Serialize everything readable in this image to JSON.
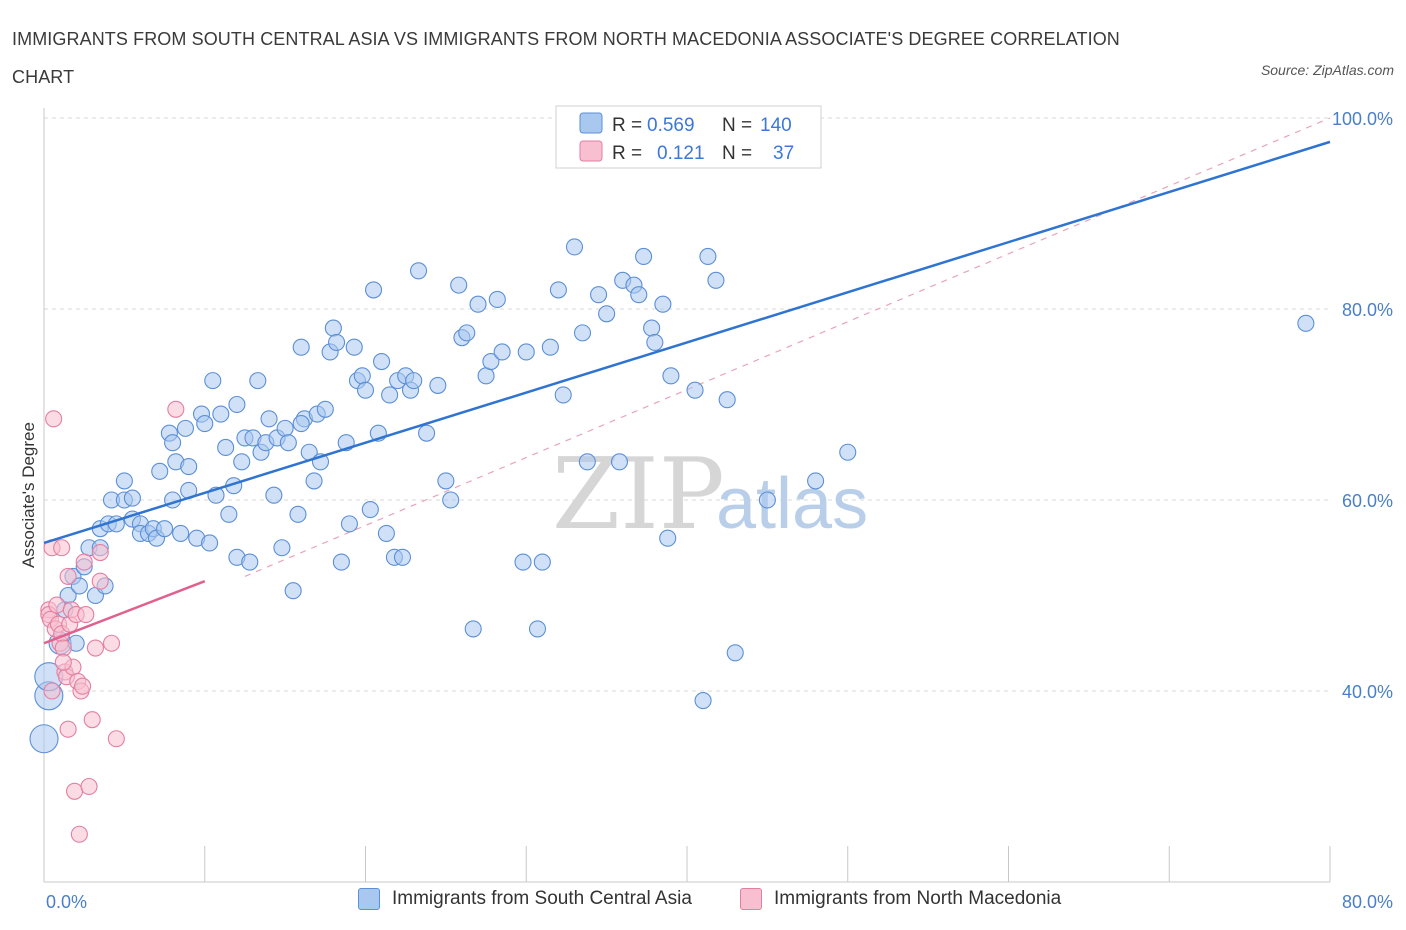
{
  "header": {
    "title": "IMMIGRANTS FROM SOUTH CENTRAL ASIA VS IMMIGRANTS FROM NORTH MACEDONIA ASSOCIATE'S DEGREE CORRELATION CHART",
    "source": "Source: ZipAtlas.com"
  },
  "watermark": {
    "zip": "ZIP",
    "atlas": "atlas"
  },
  "colors": {
    "blue_fill": "#a9c8f0",
    "blue_stroke": "#5b8fd6",
    "blue_line": "#2f74d0",
    "pink_fill": "#f7bfd0",
    "pink_stroke": "#e47fa0",
    "pink_line": "#e0608e",
    "tick_label": "#4a7fc8",
    "grid": "#d8d8d8"
  },
  "legend_box": {
    "rows": [
      {
        "r_label": "R =",
        "r_value": "0.569",
        "n_label": "N =",
        "n_value": "140"
      },
      {
        "r_label": "R =",
        "r_value": "0.121",
        "n_label": "N =",
        "n_value": "37"
      }
    ]
  },
  "bottom_legend": {
    "series1": "Immigrants from South Central Asia",
    "series2": "Immigrants from North Macedonia"
  },
  "chart_data": {
    "type": "scatter",
    "title": "IMMIGRANTS FROM SOUTH CENTRAL ASIA VS IMMIGRANTS FROM NORTH MACEDONIA ASSOCIATE'S DEGREE CORRELATION CHART",
    "xlabel": "",
    "ylabel": "Associate's Degree",
    "xlim": [
      0,
      80
    ],
    "ylim": [
      20,
      100
    ],
    "x_tick_labels": [
      {
        "value": 0,
        "label": "0.0%"
      },
      {
        "value": 80,
        "label": "80.0%"
      }
    ],
    "y_tick_labels": [
      {
        "value": 100,
        "label": "100.0%"
      },
      {
        "value": 80,
        "label": "80.0%"
      },
      {
        "value": 60,
        "label": "60.0%"
      },
      {
        "value": 40,
        "label": "40.0%"
      }
    ],
    "grid": true,
    "legend_position": "top-center",
    "series": [
      {
        "name": "Immigrants from South Central Asia",
        "r": 0.569,
        "n": 140,
        "trend": {
          "x": [
            0,
            80
          ],
          "y": [
            55.5,
            97.5
          ]
        },
        "points": [
          [
            0,
            35
          ],
          [
            0.3,
            39.5
          ],
          [
            0.3,
            41.5
          ],
          [
            1,
            45
          ],
          [
            1.3,
            48.5
          ],
          [
            1.5,
            50
          ],
          [
            1.8,
            52
          ],
          [
            2.2,
            51
          ],
          [
            2.5,
            53
          ],
          [
            2.8,
            55
          ],
          [
            3.2,
            50
          ],
          [
            3.5,
            57
          ],
          [
            3.5,
            55
          ],
          [
            3.8,
            51
          ],
          [
            4,
            57.5
          ],
          [
            4.2,
            60
          ],
          [
            4.5,
            57.5
          ],
          [
            5,
            60
          ],
          [
            5.5,
            60.2
          ],
          [
            5.5,
            58
          ],
          [
            6,
            57.5
          ],
          [
            6,
            56.5
          ],
          [
            6.5,
            56.5
          ],
          [
            6.8,
            57
          ],
          [
            7,
            56
          ],
          [
            7.2,
            63
          ],
          [
            7.5,
            57
          ],
          [
            7.8,
            67
          ],
          [
            8,
            66
          ],
          [
            8.2,
            64
          ],
          [
            8.5,
            56.5
          ],
          [
            8.8,
            67.5
          ],
          [
            9,
            61
          ],
          [
            9,
            63.5
          ],
          [
            9.5,
            56
          ],
          [
            9.8,
            69
          ],
          [
            10,
            68
          ],
          [
            10.3,
            55.5
          ],
          [
            10.5,
            72.5
          ],
          [
            10.7,
            60.5
          ],
          [
            11,
            69
          ],
          [
            11.3,
            65.5
          ],
          [
            11.5,
            58.5
          ],
          [
            11.8,
            61.5
          ],
          [
            12,
            54
          ],
          [
            12.3,
            64
          ],
          [
            12.5,
            66.5
          ],
          [
            12.8,
            53.5
          ],
          [
            13,
            66.5
          ],
          [
            13.3,
            72.5
          ],
          [
            13.5,
            65
          ],
          [
            13.8,
            66
          ],
          [
            14,
            68.5
          ],
          [
            14.3,
            60.5
          ],
          [
            14.5,
            66.5
          ],
          [
            14.8,
            55
          ],
          [
            15,
            67.5
          ],
          [
            15.2,
            66
          ],
          [
            15.5,
            50.5
          ],
          [
            15.8,
            58.5
          ],
          [
            16,
            76
          ],
          [
            16.2,
            68.5
          ],
          [
            16.5,
            65
          ],
          [
            16.8,
            62
          ],
          [
            17,
            69
          ],
          [
            17.2,
            64
          ],
          [
            17.5,
            69.5
          ],
          [
            17.8,
            75.5
          ],
          [
            18,
            78
          ],
          [
            18.2,
            76.5
          ],
          [
            18.5,
            53.5
          ],
          [
            18.8,
            66
          ],
          [
            19,
            57.5
          ],
          [
            19.3,
            76
          ],
          [
            19.5,
            72.5
          ],
          [
            19.8,
            73
          ],
          [
            20,
            71.5
          ],
          [
            20.3,
            59
          ],
          [
            20.5,
            82
          ],
          [
            20.8,
            67
          ],
          [
            21,
            74.5
          ],
          [
            21.3,
            56.5
          ],
          [
            21.5,
            71
          ],
          [
            21.8,
            54
          ],
          [
            22,
            72.5
          ],
          [
            22.3,
            54
          ],
          [
            22.5,
            73
          ],
          [
            22.8,
            71.5
          ],
          [
            23,
            72.5
          ],
          [
            23.3,
            84
          ],
          [
            23.8,
            67
          ],
          [
            24.5,
            72
          ],
          [
            25,
            62
          ],
          [
            25.3,
            60
          ],
          [
            25.8,
            82.5
          ],
          [
            26,
            77
          ],
          [
            26.3,
            77.5
          ],
          [
            26.7,
            46.5
          ],
          [
            27,
            80.5
          ],
          [
            27.5,
            73
          ],
          [
            27.8,
            74.5
          ],
          [
            28.2,
            81
          ],
          [
            28.5,
            75.5
          ],
          [
            29.8,
            53.5
          ],
          [
            30,
            75.5
          ],
          [
            30.7,
            46.5
          ],
          [
            31,
            53.5
          ],
          [
            31.5,
            76
          ],
          [
            32,
            82
          ],
          [
            32.3,
            71
          ],
          [
            33,
            86.5
          ],
          [
            33.5,
            77.5
          ],
          [
            33.8,
            64
          ],
          [
            34.5,
            81.5
          ],
          [
            35,
            79.5
          ],
          [
            35.8,
            64
          ],
          [
            36,
            83
          ],
          [
            36.7,
            82.5
          ],
          [
            37,
            81.5
          ],
          [
            37.3,
            85.5
          ],
          [
            37.8,
            78
          ],
          [
            38,
            76.5
          ],
          [
            38.5,
            80.5
          ],
          [
            38.8,
            56
          ],
          [
            39,
            73
          ],
          [
            40.5,
            71.5
          ],
          [
            41,
            39
          ],
          [
            41.3,
            85.5
          ],
          [
            41.8,
            83
          ],
          [
            42.5,
            70.5
          ],
          [
            43,
            44
          ],
          [
            45,
            60
          ],
          [
            48,
            62
          ],
          [
            50,
            65
          ],
          [
            78.5,
            78.5
          ],
          [
            2,
            45
          ],
          [
            5,
            62
          ],
          [
            8,
            60
          ],
          [
            12,
            70
          ],
          [
            16,
            68
          ]
        ]
      },
      {
        "name": "Immigrants from North Macedonia",
        "r": 0.121,
        "n": 37,
        "trend": {
          "x": [
            0,
            10
          ],
          "y": [
            45,
            51.5
          ]
        },
        "points": [
          [
            0.3,
            48.5
          ],
          [
            0.3,
            48
          ],
          [
            0.4,
            47.5
          ],
          [
            0.5,
            55
          ],
          [
            0.5,
            40
          ],
          [
            0.6,
            68.5
          ],
          [
            0.7,
            46.5
          ],
          [
            0.8,
            49
          ],
          [
            0.9,
            47
          ],
          [
            1,
            45
          ],
          [
            1.1,
            55
          ],
          [
            1.1,
            46
          ],
          [
            1.2,
            44.5
          ],
          [
            1.3,
            42
          ],
          [
            1.4,
            41.5
          ],
          [
            1.5,
            36
          ],
          [
            1.5,
            52
          ],
          [
            1.6,
            47
          ],
          [
            1.7,
            48.5
          ],
          [
            1.8,
            42.5
          ],
          [
            1.9,
            29.5
          ],
          [
            2,
            48
          ],
          [
            2.1,
            41
          ],
          [
            2.2,
            25
          ],
          [
            2.3,
            40
          ],
          [
            2.4,
            40.5
          ],
          [
            2.5,
            53.5
          ],
          [
            2.6,
            48
          ],
          [
            2.8,
            30
          ],
          [
            3,
            37
          ],
          [
            3.2,
            44.5
          ],
          [
            3.5,
            51.5
          ],
          [
            3.5,
            54.5
          ],
          [
            4.2,
            45
          ],
          [
            4.5,
            35
          ],
          [
            8.2,
            69.5
          ],
          [
            1.2,
            43
          ]
        ]
      }
    ]
  }
}
